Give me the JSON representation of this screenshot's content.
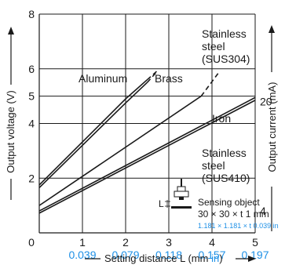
{
  "chart_data": {
    "type": "line",
    "x_axis": {
      "label_prefix": "Setting distance L (mm ",
      "label_unit_alt": "in",
      "label_suffix": ")",
      "range": [
        0,
        5
      ],
      "ticks": [
        "0",
        "1",
        "2",
        "3",
        "4",
        "5"
      ],
      "ticks_in": [
        "0.039",
        "0.079",
        "0.118",
        "0.157",
        "0.197"
      ]
    },
    "y_axis_left": {
      "label": "Output voltage (V)",
      "range": [
        0,
        8
      ],
      "ticks": [
        {
          "value": 2,
          "label": "2"
        },
        {
          "value": 4,
          "label": "4"
        },
        {
          "value": 5,
          "label": "5"
        },
        {
          "value": 6,
          "label": "6"
        },
        {
          "value": 8,
          "label": "8"
        }
      ]
    },
    "y_axis_right": {
      "label": "Output current (mA)",
      "ticks": [
        {
          "value_voltage": 0.8,
          "label": "4"
        },
        {
          "value_voltage": 4.8,
          "label": "20"
        }
      ]
    },
    "grid": true,
    "series": [
      {
        "name": "Aluminum",
        "points": [
          [
            0,
            1.75
          ],
          [
            2,
            4.9
          ],
          [
            2.5,
            5.6
          ]
        ],
        "dashed_to": [
          [
            2.5,
            5.6
          ],
          [
            2.75,
            5.95
          ]
        ]
      },
      {
        "name": "Brass",
        "points": [
          [
            0,
            1.65
          ],
          [
            2,
            4.75
          ],
          [
            2.5,
            5.5
          ]
        ],
        "dashed_to": [
          [
            2.5,
            5.5
          ],
          [
            2.7,
            5.85
          ]
        ]
      },
      {
        "name": "Stainless steel (SUS304)",
        "points": [
          [
            0,
            1.0
          ],
          [
            3.75,
            5.0
          ]
        ],
        "dashed_to": [
          [
            3.75,
            5.0
          ],
          [
            4.15,
            5.85
          ]
        ]
      },
      {
        "name": "Iron",
        "points": [
          [
            0,
            0.8
          ],
          [
            5,
            4.95
          ]
        ]
      },
      {
        "name": "Stainless steel (SUS410)",
        "points": [
          [
            0,
            0.72
          ],
          [
            5,
            4.85
          ]
        ]
      }
    ],
    "series_labels": {
      "aluminum": "Aluminum",
      "brass": "Brass",
      "sus304_line1": "Stainless",
      "sus304_line2": "steel",
      "sus304_line3": "(SUS304)",
      "iron": "Iron",
      "sus410_line1": "Stainless",
      "sus410_line2": "steel",
      "sus410_line3": "(SUS410)"
    },
    "annotation": {
      "line1": "Sensing object",
      "line2": "30 × 30 × t 1 mm",
      "line3": "1.181 × 1.181 × t 0.039 in",
      "symbol_label": "L"
    },
    "colors": {
      "ink": "#1a1a1a",
      "inch": "#1e90e6",
      "grid": "#1a1a1a"
    }
  }
}
